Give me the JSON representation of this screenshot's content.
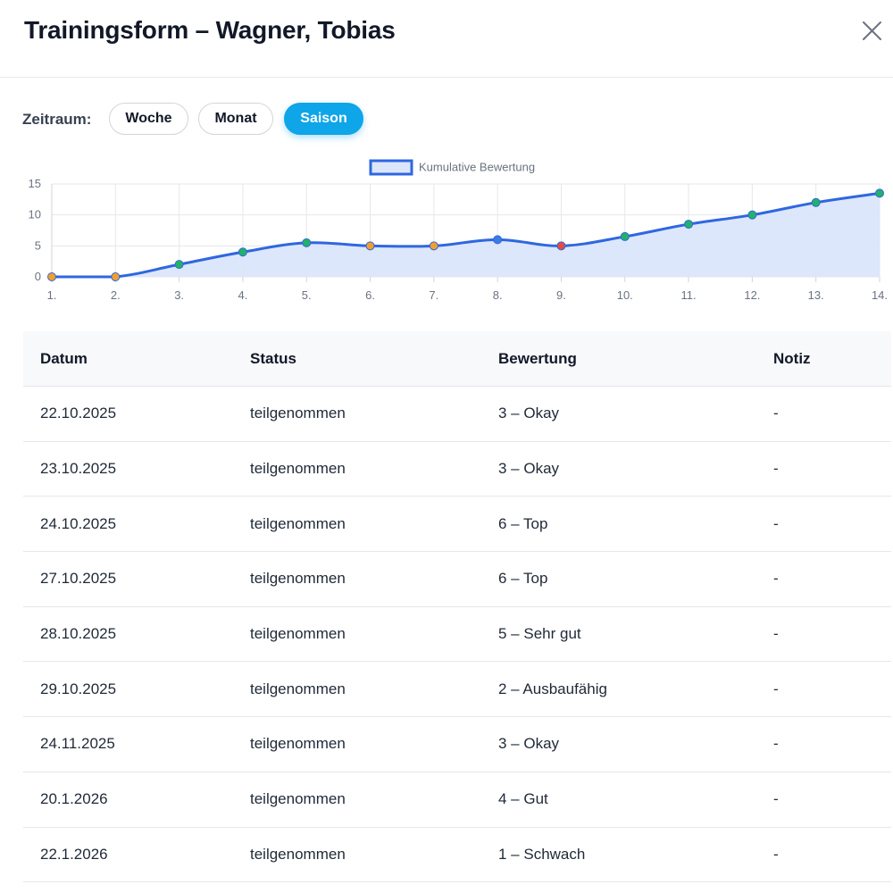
{
  "modal": {
    "title": "Trainingsform – Wagner, Tobias",
    "close_icon": "close-icon"
  },
  "filter": {
    "label": "Zeitraum:",
    "options": [
      "Woche",
      "Monat",
      "Saison"
    ],
    "selected": "Saison"
  },
  "colors": {
    "accent": "#0ea5e9",
    "line": "#2f67e0",
    "fill": "#dbe6fb",
    "point_green": "#22b265",
    "point_orange": "#f0a02a",
    "point_red": "#e24d3f",
    "point_blue": "#3b7be6"
  },
  "chart_data": {
    "type": "area",
    "legend": {
      "label": "Kumulative Bewertung",
      "position": "top-center"
    },
    "x": [
      "1.",
      "2.",
      "3.",
      "4.",
      "5.",
      "6.",
      "7.",
      "8.",
      "9.",
      "10.",
      "11.",
      "12.",
      "13.",
      "14."
    ],
    "series": [
      {
        "name": "Kumulative Bewertung",
        "values": [
          0,
          0,
          2,
          4,
          5.5,
          5,
          5,
          6,
          5,
          6.5,
          8.5,
          10,
          12,
          13.5
        ],
        "point_colors": [
          "orange",
          "orange",
          "green",
          "green",
          "green",
          "orange",
          "orange",
          "blue",
          "red",
          "green",
          "green",
          "green",
          "green",
          "green"
        ]
      }
    ],
    "yticks": [
      0,
      5,
      10,
      15
    ],
    "ylim": [
      0,
      15
    ],
    "grid": true
  },
  "table": {
    "headers": [
      "Datum",
      "Status",
      "Bewertung",
      "Notiz"
    ],
    "rows": [
      [
        "22.10.2025",
        "teilgenommen",
        "3 – Okay",
        "-"
      ],
      [
        "23.10.2025",
        "teilgenommen",
        "3 – Okay",
        "-"
      ],
      [
        "24.10.2025",
        "teilgenommen",
        "6 – Top",
        "-"
      ],
      [
        "27.10.2025",
        "teilgenommen",
        "6 – Top",
        "-"
      ],
      [
        "28.10.2025",
        "teilgenommen",
        "5 – Sehr gut",
        "-"
      ],
      [
        "29.10.2025",
        "teilgenommen",
        "2 – Ausbaufähig",
        "-"
      ],
      [
        "24.11.2025",
        "teilgenommen",
        "3 – Okay",
        "-"
      ],
      [
        "20.1.2026",
        "teilgenommen",
        "4 – Gut",
        "-"
      ],
      [
        "22.1.2026",
        "teilgenommen",
        "1 – Schwach",
        "-"
      ]
    ]
  }
}
